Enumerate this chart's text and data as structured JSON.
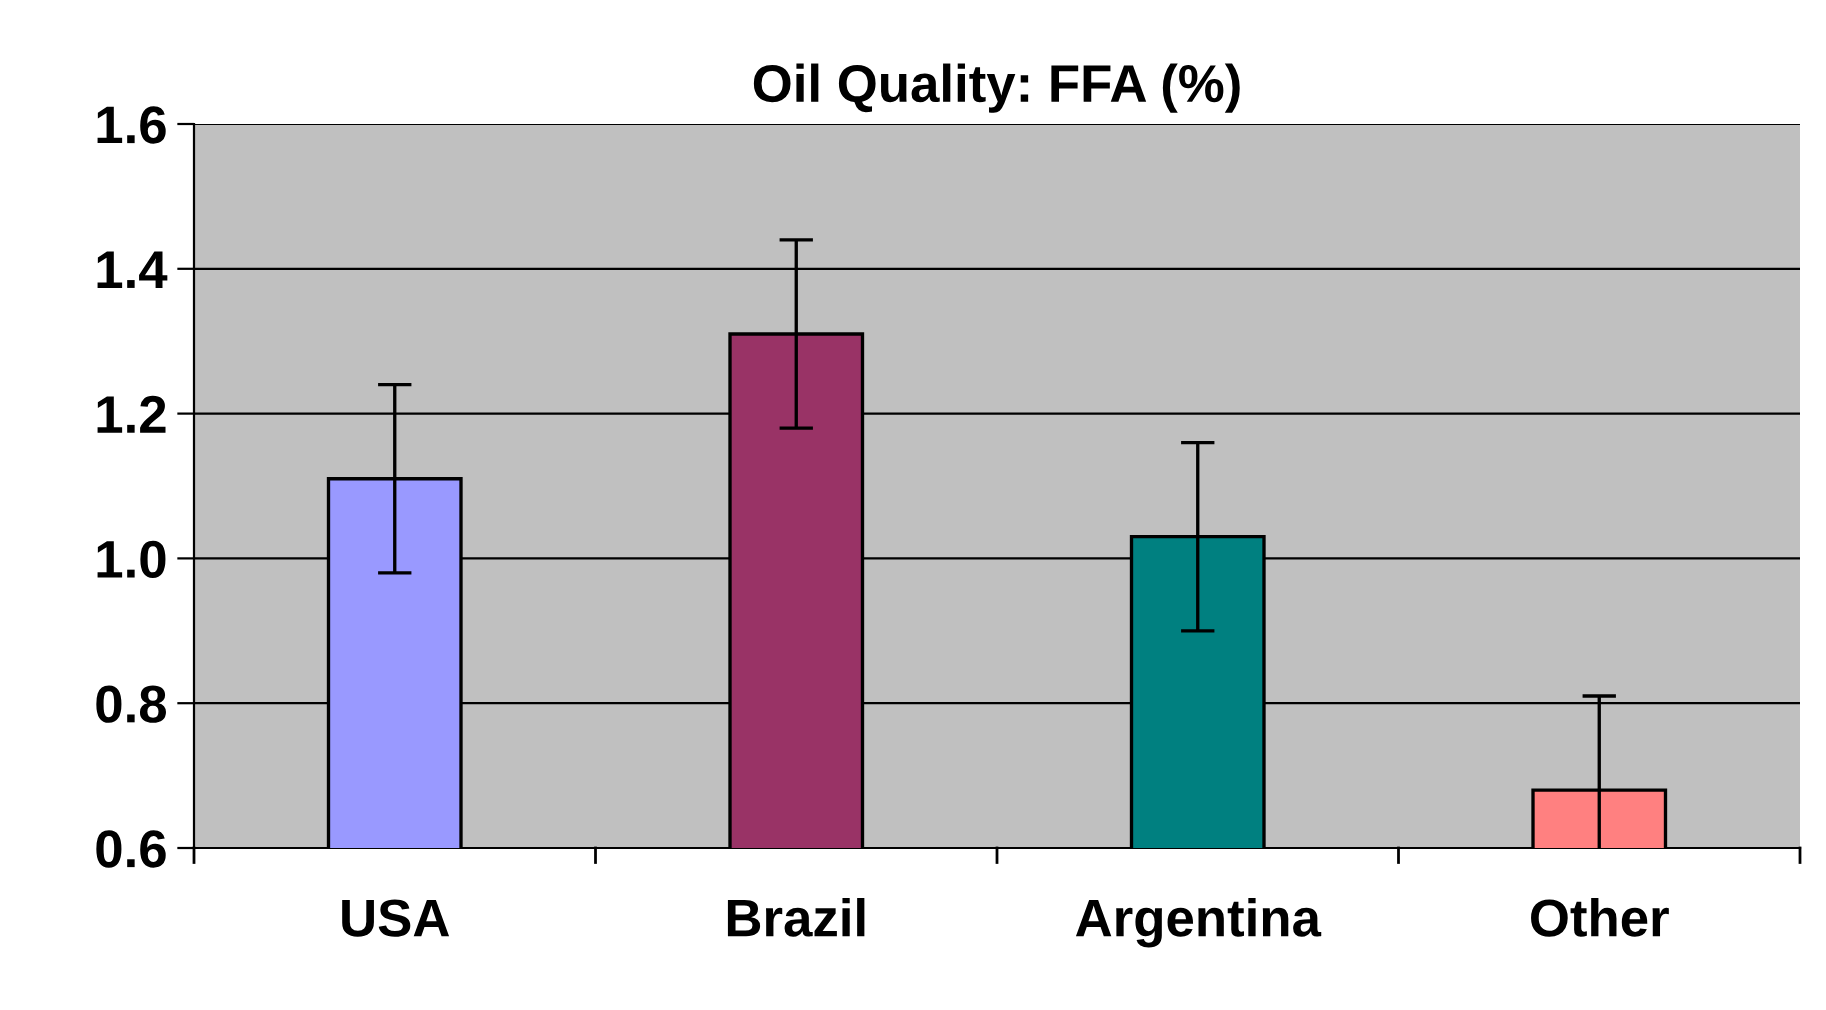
{
  "chart_data": {
    "type": "bar",
    "title": "Oil Quality: FFA (%)",
    "categories": [
      "USA",
      "Brazil",
      "Argentina",
      "Other"
    ],
    "values": [
      1.11,
      1.31,
      1.03,
      0.68
    ],
    "errors": [
      0.13,
      0.13,
      0.13,
      0.13
    ],
    "colors": [
      "#9999ff",
      "#993366",
      "#008080",
      "#ff8080"
    ],
    "ylim": [
      0.6,
      1.6
    ],
    "yticks": [
      {
        "value": 0.6,
        "label": "0.6"
      },
      {
        "value": 0.8,
        "label": "0.8"
      },
      {
        "value": 1.0,
        "label": "1.0"
      },
      {
        "value": 1.2,
        "label": "1.2"
      },
      {
        "value": 1.4,
        "label": "1.4"
      },
      {
        "value": 1.6,
        "label": "1.6"
      }
    ],
    "grid": "y",
    "legend": false
  }
}
